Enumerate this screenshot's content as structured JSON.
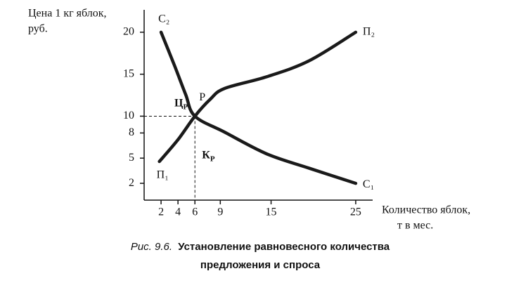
{
  "chart_data": {
    "type": "line",
    "y_label": [
      "Цена 1 кг яблок,",
      "руб."
    ],
    "x_label": [
      "Количество яблок,",
      "т в мес."
    ],
    "caption": {
      "prefix": "Рис. 9.6.",
      "lines": [
        "Установление равновесного количества",
        "предложения и спроса"
      ]
    },
    "xlim": [
      0,
      27
    ],
    "ylim": [
      0,
      22.5
    ],
    "xticks": [
      2,
      4,
      6,
      9,
      15,
      25
    ],
    "yticks": [
      2,
      5,
      8,
      10,
      15,
      20
    ],
    "series": [
      {
        "start_label": "С₂",
        "end_label": "С₁",
        "color": "#1a1a1a",
        "x": [
          2,
          3.6,
          4.9,
          6,
          9.5,
          14.5,
          19.5,
          25
        ],
        "values": [
          20,
          16,
          12.6,
          10,
          8.1,
          5.5,
          3.8,
          2
        ]
      },
      {
        "start_label": "П₁",
        "end_label": "П₂",
        "color": "#1a1a1a",
        "x": [
          1.8,
          4,
          6,
          7.8,
          9.5,
          14.5,
          19.5,
          25
        ],
        "values": [
          4.6,
          7.2,
          10,
          12,
          13.3,
          14.7,
          16.6,
          20
        ]
      }
    ],
    "equilibrium": {
      "x": 6,
      "y": 10,
      "label": "Р",
      "price_label": {
        "text": "Ц",
        "sub": "Р"
      },
      "quantity_label": {
        "text": "К",
        "sub": "Р"
      }
    }
  }
}
